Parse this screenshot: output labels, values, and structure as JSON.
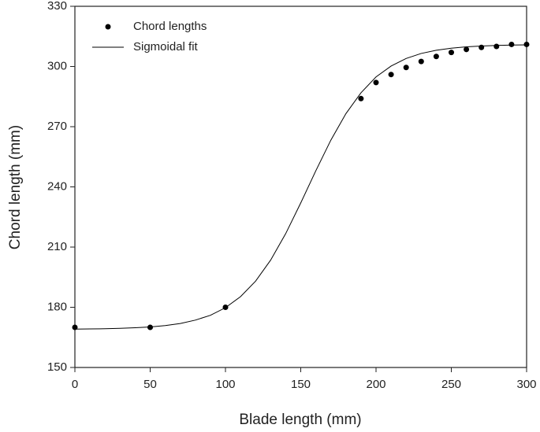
{
  "chart_data": {
    "type": "scatter",
    "xlabel": "Blade length (mm)",
    "ylabel": "Chord length (mm)",
    "xlim": [
      0,
      300
    ],
    "xticks": [
      0,
      50,
      100,
      150,
      200,
      250,
      300
    ],
    "ylim": [
      150,
      330
    ],
    "yticks": [
      150,
      180,
      210,
      240,
      270,
      300,
      330
    ],
    "legend": "upper left",
    "series": [
      {
        "name": "Chord lengths",
        "type": "scatter",
        "color": "#000000",
        "x": [
          0,
          50,
          100,
          190,
          200,
          210,
          220,
          230,
          240,
          250,
          260,
          270,
          280,
          290,
          300
        ],
        "values": [
          170,
          170,
          180,
          284,
          292,
          296,
          299.5,
          302.5,
          305,
          307,
          308.5,
          309.5,
          310,
          311,
          311
        ]
      },
      {
        "name": "Sigmoidal fit",
        "type": "line",
        "color": "#000000",
        "x": [
          0,
          10,
          20,
          30,
          40,
          50,
          60,
          70,
          80,
          90,
          100,
          110,
          120,
          130,
          140,
          150,
          160,
          170,
          180,
          190,
          200,
          210,
          220,
          230,
          240,
          250,
          260,
          270,
          280,
          290,
          300
        ],
        "values": [
          169.1,
          169.2,
          169.3,
          169.5,
          169.8,
          170.2,
          170.9,
          171.9,
          173.6,
          176.0,
          179.8,
          185.3,
          193.0,
          203.5,
          216.7,
          232.0,
          248.0,
          263.3,
          276.5,
          286.9,
          294.8,
          300.2,
          304.0,
          306.5,
          308.1,
          309.1,
          309.8,
          310.2,
          310.5,
          310.7,
          310.8
        ]
      }
    ]
  }
}
